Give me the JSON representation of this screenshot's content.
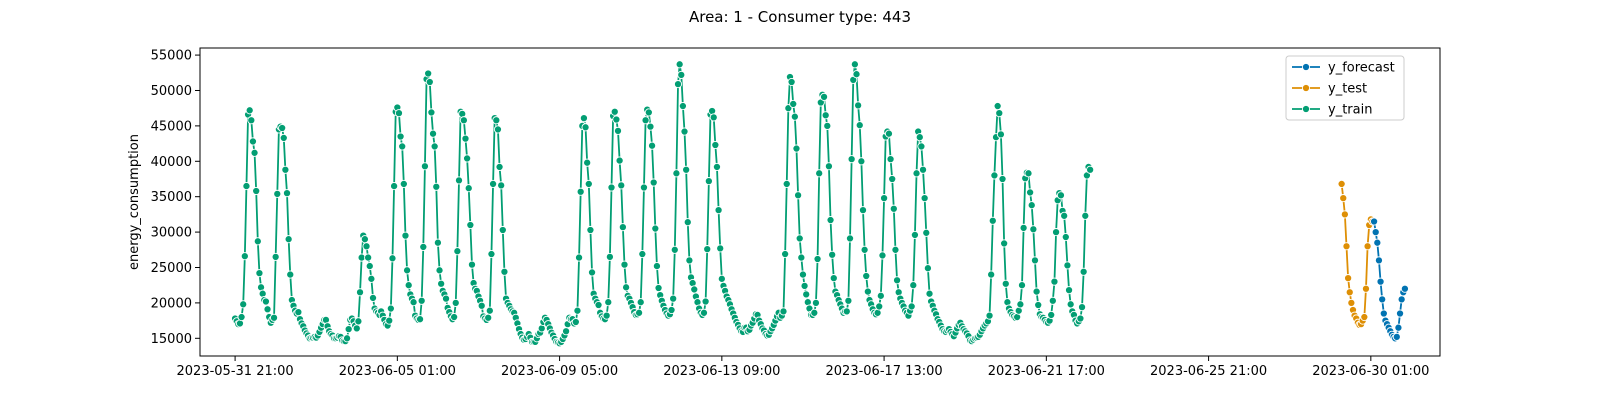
{
  "chart_data": {
    "type": "line",
    "title": "Area: 1 - Consumer type: 443",
    "xlabel": "",
    "ylabel": "energy_consumption",
    "x_ticks": [
      "2023-05-31 21:00",
      "2023-06-05 01:00",
      "2023-06-09 05:00",
      "2023-06-13 09:00",
      "2023-06-17 13:00",
      "2023-06-21 17:00",
      "2023-06-25 21:00",
      "2023-06-30 01:00"
    ],
    "y_ticks": [
      15000,
      20000,
      25000,
      30000,
      35000,
      40000,
      45000,
      50000,
      55000
    ],
    "ylim": [
      12500,
      56000
    ],
    "time_unit": "hour",
    "grid": false,
    "legend_position": "top-right",
    "series": [
      {
        "name": "y_forecast",
        "color": "#0173b2",
        "x_start": "2023-06-30 03:00",
        "values": [
          31500,
          30000,
          28500,
          26000,
          23000,
          20500,
          18500,
          17500,
          17000,
          16500,
          16000,
          15500,
          15200,
          15000,
          15200,
          16500,
          18500,
          20500,
          21500,
          22000
        ]
      },
      {
        "name": "y_test",
        "color": "#de8f05",
        "x_start": "2023-06-29 07:00",
        "values": [
          36800,
          34800,
          32500,
          28000,
          23500,
          21500,
          20000,
          19000,
          18200,
          17800,
          17200,
          16900,
          17000,
          17500,
          18000,
          22000,
          28000,
          31000,
          31800,
          31500
        ]
      },
      {
        "name": "y_train",
        "color": "#029e73",
        "x_start": "2023-05-31 21:00",
        "values": [
          17800,
          17400,
          17000,
          17100,
          18000,
          19800,
          26600,
          36500,
          46600,
          47200,
          45800,
          42800,
          41200,
          35800,
          28700,
          24200,
          22200,
          21300,
          20400,
          20200,
          19100,
          18000,
          17200,
          17600,
          17900,
          26500,
          35400,
          44500,
          44900,
          44700,
          43300,
          38800,
          35500,
          29000,
          24000,
          20400,
          19600,
          18900,
          18500,
          18700,
          17700,
          17100,
          16700,
          16100,
          15700,
          15400,
          15000,
          15100,
          15100,
          15200,
          15100,
          15400,
          15900,
          16500,
          17000,
          17600,
          17600,
          16700,
          16000,
          15600,
          15400,
          15000,
          15000,
          15100,
          15300,
          15200,
          14700,
          14600,
          14600,
          15000,
          16300,
          17600,
          17800,
          17400,
          16800,
          16400,
          17400,
          21500,
          26400,
          29500,
          29000,
          28000,
          26400,
          25200,
          23400,
          20700,
          19200,
          18800,
          18600,
          18300,
          18800,
          18200,
          17600,
          17000,
          16800,
          17500,
          19200,
          26300,
          36500,
          47000,
          47600,
          46800,
          43500,
          42100,
          36800,
          29500,
          24600,
          22500,
          21200,
          20600,
          20100,
          18200,
          17800,
          17600,
          17700,
          20300,
          27900,
          39300,
          51600,
          52400,
          51200,
          46900,
          43900,
          42100,
          36400,
          28500,
          24600,
          22700,
          21700,
          21200,
          20600,
          19300,
          18700,
          18100,
          17700,
          18000,
          20000,
          27300,
          37300,
          47000,
          46700,
          45800,
          43200,
          40400,
          36200,
          31000,
          25400,
          22800,
          22000,
          21700,
          20900,
          20300,
          19600,
          18100,
          17800,
          17600,
          17900,
          18900,
          26900,
          36800,
          46100,
          45800,
          44500,
          39200,
          36600,
          30300,
          24400,
          20600,
          20000,
          19600,
          19100,
          18800,
          18600,
          17900,
          17100,
          16300,
          15600,
          15100,
          14800,
          14900,
          15200,
          15600,
          15100,
          14500,
          14500,
          14500,
          15000,
          15600,
          15800,
          16400,
          17300,
          17900,
          17600,
          17000,
          16400,
          15800,
          15400,
          14900,
          14500,
          14400,
          14300,
          14500,
          14900,
          15400,
          16000,
          17000,
          17900,
          17700,
          17700,
          17100,
          17300,
          18900,
          26400,
          35700,
          45000,
          46100,
          44800,
          39800,
          36800,
          30300,
          24300,
          21300,
          20600,
          20100,
          19700,
          18600,
          18100,
          17800,
          17700,
          18200,
          20100,
          26500,
          36300,
          46400,
          47000,
          45900,
          44300,
          40100,
          36600,
          30700,
          25400,
          22200,
          21000,
          20600,
          20000,
          19400,
          18700,
          18300,
          18400,
          18600,
          20100,
          26900,
          36300,
          45800,
          47300,
          46900,
          44900,
          42200,
          37000,
          30500,
          25200,
          22100,
          21100,
          20300,
          19600,
          19000,
          18500,
          18200,
          18400,
          19000,
          20600,
          27500,
          38300,
          50900,
          53700,
          52200,
          47800,
          44200,
          38800,
          31400,
          26000,
          23600,
          22800,
          21900,
          20900,
          20100,
          19200,
          18600,
          18300,
          18600,
          20200,
          27600,
          37200,
          46600,
          47100,
          46200,
          42300,
          39200,
          33100,
          27700,
          23400,
          22400,
          21700,
          20900,
          20400,
          19800,
          19100,
          18500,
          17900,
          17300,
          16900,
          16400,
          16000,
          15900,
          16500,
          16500,
          16000,
          16200,
          16800,
          17200,
          17800,
          18400,
          18300,
          17500,
          17000,
          16400,
          16100,
          15600,
          15400,
          15500,
          16000,
          16400,
          16900,
          17500,
          18100,
          18600,
          17900,
          18200,
          18800,
          26900,
          36800,
          47500,
          51900,
          51200,
          48100,
          46300,
          41800,
          35200,
          29100,
          26400,
          24000,
          22400,
          21200,
          20100,
          19200,
          18300,
          18300,
          18600,
          20000,
          26200,
          38300,
          48300,
          49400,
          49100,
          46500,
          45000,
          39300,
          31700,
          26800,
          23500,
          21600,
          21100,
          20400,
          19800,
          19200,
          18600,
          18800,
          18800,
          20300,
          29100,
          40300,
          51500,
          53700,
          52300,
          47900,
          45100,
          40000,
          33100,
          27500,
          23800,
          21600,
          20400,
          19800,
          19100,
          18600,
          18400,
          18600,
          19500,
          21000,
          26700,
          34800,
          43500,
          44200,
          43900,
          40300,
          37500,
          33300,
          27500,
          23200,
          21500,
          20600,
          20000,
          19500,
          18900,
          18600,
          18200,
          18900,
          19500,
          22500,
          29600,
          38300,
          44200,
          43400,
          42100,
          38800,
          34800,
          29900,
          24900,
          21300,
          20200,
          19600,
          18900,
          18400,
          17700,
          17300,
          16800,
          16300,
          16000,
          15900,
          16100,
          16300,
          15900,
          15600,
          15300,
          15800,
          16400,
          16900,
          17200,
          16700,
          16300,
          16000,
          15700,
          15300,
          14700,
          14600,
          14800,
          15000,
          15100,
          15200,
          15500,
          16000,
          16400,
          16800,
          17100,
          17400,
          18200,
          24000,
          31600,
          38000,
          43400,
          47800,
          46800,
          43800,
          37500,
          28400,
          22700,
          20100,
          19200,
          18700,
          18300,
          18100,
          17900,
          18000,
          18900,
          19800,
          22500,
          30600,
          37600,
          38400,
          38300,
          35600,
          33800,
          30400,
          26000,
          21600,
          19700,
          18400,
          18000,
          17900,
          17600,
          17300,
          17200,
          17500,
          18300,
          20300,
          23000,
          30000,
          34500,
          35500,
          35200,
          33000,
          32300,
          29300,
          25300,
          21800,
          19800,
          18800,
          18300,
          17500,
          17100,
          17400,
          17800,
          19400,
          24400,
          32300,
          38000,
          39200,
          38800
        ]
      }
    ]
  }
}
